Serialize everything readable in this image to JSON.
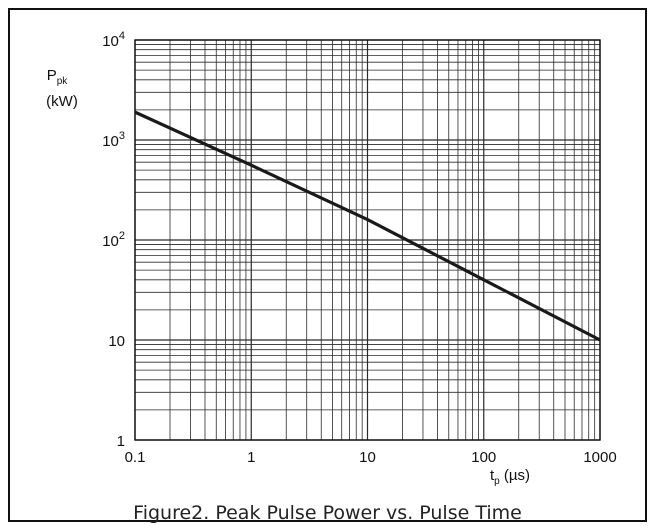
{
  "chart_data": {
    "type": "line",
    "title": "Figure2. Peak Pulse Power vs. Pulse Time",
    "x_scale": "log",
    "y_scale": "log",
    "xlim": [
      0.1,
      1000
    ],
    "ylim": [
      1,
      10000
    ],
    "x_ticks": [
      {
        "value": 0.1,
        "label": "0.1"
      },
      {
        "value": 1,
        "label": "1"
      },
      {
        "value": 10,
        "label": "10"
      },
      {
        "value": 100,
        "label": "100"
      },
      {
        "value": 1000,
        "label": "1000"
      }
    ],
    "y_ticks": [
      {
        "value": 1,
        "label": "1"
      },
      {
        "value": 10,
        "label": "10"
      },
      {
        "value": 100,
        "label": "10",
        "sup": "2"
      },
      {
        "value": 1000,
        "label": "10",
        "sup": "3"
      },
      {
        "value": 10000,
        "label": "10",
        "sup": "4"
      }
    ],
    "xlabel": {
      "main": "t",
      "sub": "p",
      "unit": " (µs)"
    },
    "ylabel": {
      "main": "P",
      "sub": "pk",
      "unit": "(kW)"
    },
    "grid": true,
    "series": [
      {
        "x": [
          0.1,
          1,
          10,
          100,
          1000
        ],
        "y": [
          1900,
          560,
          160,
          40,
          10
        ]
      }
    ],
    "colors": {
      "line": "#1a1a1a",
      "grid": "#2a2a2a"
    }
  }
}
